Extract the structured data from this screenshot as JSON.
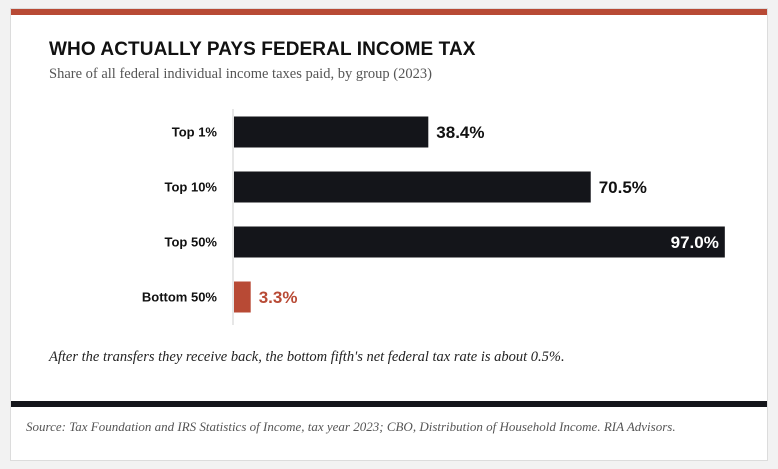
{
  "header": {
    "title": "WHO ACTUALLY PAYS FEDERAL INCOME TAX",
    "subtitle": "Share of all federal individual income taxes paid, by group (2023)"
  },
  "chart_data": {
    "type": "bar",
    "orientation": "horizontal",
    "categories": [
      "Top 1%",
      "Top 10%",
      "Top 50%",
      "Bottom 50%"
    ],
    "values": [
      38.4,
      70.5,
      97.0,
      3.3
    ],
    "value_labels": [
      "38.4%",
      "70.5%",
      "97.0%",
      "3.3%"
    ],
    "xlim": [
      0,
      100
    ],
    "grid": false,
    "colors": {
      "default_bar": "#14151a",
      "highlight_bar": "#b84a35"
    },
    "highlight_index": 3
  },
  "note": "After the transfers they receive back, the bottom fifth's net federal tax rate is about 0.5%.",
  "footer": {
    "source": "Source: Tax Foundation and IRS Statistics of Income, tax year 2023; CBO, Distribution of Household Income. RIA Advisors."
  },
  "colors": {
    "accent": "#b84a35",
    "dark": "#14151a"
  }
}
